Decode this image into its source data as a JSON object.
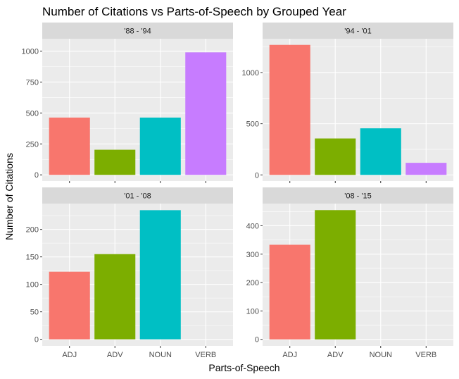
{
  "chart_data": {
    "type": "bar",
    "title": "Number of Citations vs Parts-of-Speech by Grouped Year",
    "xlabel": "Parts-of-Speech",
    "ylabel": "Number of Citations",
    "categories": [
      "ADJ",
      "ADV",
      "NOUN",
      "VERB"
    ],
    "colors": {
      "ADJ": "#F8766D",
      "ADV": "#7CAE00",
      "NOUN": "#00BFC4",
      "VERB": "#C77CFF"
    },
    "panels": [
      {
        "label": "'88 - '94",
        "values": [
          463,
          203,
          463,
          990
        ],
        "yticks": [
          0,
          250,
          500,
          750,
          1000
        ],
        "ylim": [
          -50,
          1100
        ]
      },
      {
        "label": "'94 - '01",
        "values": [
          1270,
          356,
          455,
          118
        ],
        "yticks": [
          0,
          500,
          1000
        ],
        "ylim": [
          -60,
          1330
        ]
      },
      {
        "label": "'01 - '08",
        "values": [
          123,
          155,
          235,
          0
        ],
        "yticks": [
          0,
          50,
          100,
          150,
          200
        ],
        "ylim": [
          -12,
          247
        ]
      },
      {
        "label": "'08 - '15",
        "values": [
          333,
          455,
          0,
          0
        ],
        "yticks": [
          0,
          100,
          200,
          300,
          400
        ],
        "ylim": [
          -23,
          478
        ]
      }
    ],
    "panel_background": "#EBEBEB",
    "strip_background": "#D9D9D9",
    "grid": true,
    "legend": "none"
  }
}
